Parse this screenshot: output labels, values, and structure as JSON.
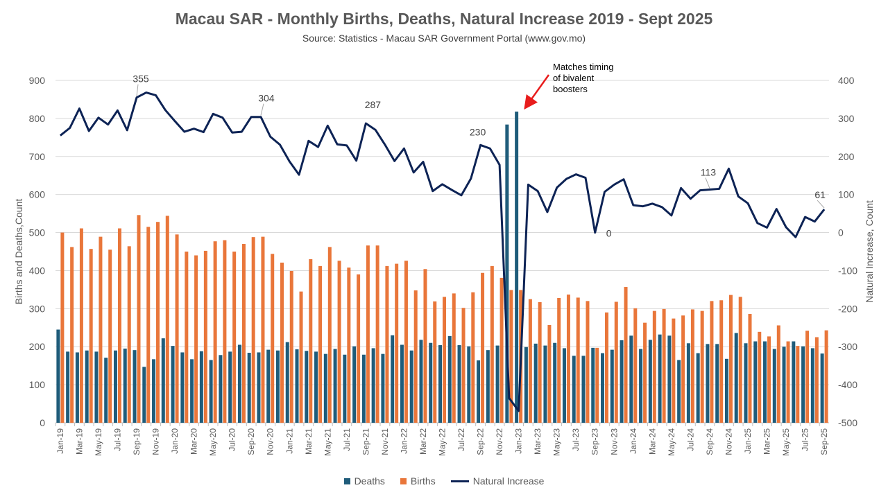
{
  "chart_data": {
    "type": "bar+line",
    "title": "Macau SAR - Monthly Births, Deaths, Natural Increase 2019 - Sept 2025",
    "subtitle": "Source: Statistics - Macau SAR Government Portal (www.gov.mo)",
    "ylabel_left": "Births and Deaths,Count",
    "ylabel_right": "Natural Increase, Count",
    "ylim_left": [
      0,
      900
    ],
    "ylim_right": [
      -500,
      400
    ],
    "yticks_left": [
      "0",
      "100",
      "200",
      "300",
      "400",
      "500",
      "600",
      "700",
      "800",
      "900"
    ],
    "yticks_right": [
      "-500",
      "-400",
      "-300",
      "-200",
      "-100",
      "0",
      "100",
      "200",
      "300",
      "400"
    ],
    "grid": true,
    "legend_position": "bottom",
    "months": [
      "Jan-19",
      "Feb-19",
      "Mar-19",
      "Apr-19",
      "May-19",
      "Jun-19",
      "Jul-19",
      "Aug-19",
      "Sep-19",
      "Oct-19",
      "Nov-19",
      "Dec-19",
      "Jan-20",
      "Feb-20",
      "Mar-20",
      "Apr-20",
      "May-20",
      "Jun-20",
      "Jul-20",
      "Aug-20",
      "Sep-20",
      "Oct-20",
      "Nov-20",
      "Dec-20",
      "Jan-21",
      "Feb-21",
      "Mar-21",
      "Apr-21",
      "May-21",
      "Jun-21",
      "Jul-21",
      "Aug-21",
      "Sep-21",
      "Oct-21",
      "Nov-21",
      "Dec-21",
      "Jan-22",
      "Feb-22",
      "Mar-22",
      "Apr-22",
      "May-22",
      "Jun-22",
      "Jul-22",
      "Aug-22",
      "Sep-22",
      "Oct-22",
      "Nov-22",
      "Dec-22",
      "Jan-23",
      "Feb-23",
      "Mar-23",
      "Apr-23",
      "May-23",
      "Jun-23",
      "Jul-23",
      "Aug-23",
      "Sep-23",
      "Oct-23",
      "Nov-23",
      "Dec-23",
      "Jan-24",
      "Feb-24",
      "Mar-24",
      "Apr-24",
      "May-24",
      "Jun-24",
      "Jul-24",
      "Aug-24",
      "Sep-24",
      "Oct-24",
      "Nov-24",
      "Dec-24",
      "Jan-25",
      "Feb-25",
      "Mar-25",
      "Apr-25",
      "May-25",
      "Jun-25",
      "Jul-25",
      "Aug-25",
      "Sep-25"
    ],
    "series": [
      {
        "name": "Deaths",
        "axis": "left",
        "color": "#1f5c7a",
        "values": [
          245,
          187,
          185,
          190,
          187,
          171,
          190,
          195,
          191,
          147,
          167,
          222,
          202,
          185,
          167,
          188,
          165,
          178,
          187,
          205,
          184,
          185,
          192,
          190,
          212,
          193,
          189,
          187,
          181,
          194,
          179,
          201,
          179,
          196,
          181,
          230,
          205,
          190,
          218,
          210,
          204,
          228,
          204,
          201,
          164,
          191,
          203,
          784,
          818,
          199,
          208,
          203,
          210,
          196,
          176,
          176,
          197,
          183,
          192,
          217,
          229,
          194,
          218,
          232,
          229,
          165,
          209,
          183,
          207,
          207,
          168,
          236,
          209,
          214,
          214,
          194,
          200,
          214,
          201,
          196,
          182
        ]
      },
      {
        "name": "Births",
        "axis": "left",
        "color": "#e9763a",
        "values": [
          500,
          462,
          511,
          457,
          489,
          455,
          511,
          464,
          546,
          515,
          528,
          544,
          495,
          450,
          440,
          452,
          477,
          480,
          450,
          470,
          488,
          489,
          444,
          421,
          399,
          345,
          430,
          412,
          462,
          426,
          408,
          390,
          466,
          466,
          412,
          418,
          426,
          348,
          404,
          319,
          331,
          340,
          302,
          343,
          394,
          412,
          381,
          349,
          349,
          325,
          317,
          257,
          328,
          337,
          329,
          320,
          197,
          290,
          318,
          357,
          301,
          263,
          294,
          299,
          274,
          282,
          298,
          294,
          320,
          322,
          336,
          331,
          286,
          239,
          227,
          256,
          214,
          202,
          242,
          225,
          243
        ]
      },
      {
        "name": "Natural Increase",
        "axis": "right",
        "color": "#0d2355",
        "values": [
          255,
          275,
          326,
          267,
          302,
          284,
          321,
          269,
          355,
          368,
          361,
          322,
          293,
          265,
          273,
          264,
          312,
          302,
          263,
          265,
          304,
          304,
          252,
          231,
          187,
          152,
          241,
          225,
          281,
          232,
          229,
          189,
          287,
          270,
          231,
          188,
          221,
          158,
          186,
          109,
          127,
          112,
          98,
          142,
          230,
          221,
          178,
          -435,
          -469,
          126,
          109,
          54,
          118,
          141,
          153,
          144,
          0,
          107,
          126,
          140,
          72,
          69,
          76,
          67,
          45,
          117,
          89,
          111,
          113,
          115,
          168,
          95,
          77,
          25,
          13,
          62,
          14,
          -12,
          41,
          29,
          61
        ]
      }
    ],
    "data_labels": [
      {
        "month": "Sep-19",
        "text": "355"
      },
      {
        "month": "Oct-20",
        "text": "304"
      },
      {
        "month": "Sep-21",
        "text": "287"
      },
      {
        "month": "Sep-22",
        "text": "230"
      },
      {
        "month": "Sep-23",
        "text": "0"
      },
      {
        "month": "Sep-24",
        "text": "113"
      },
      {
        "month": "Sep-25",
        "text": "61"
      }
    ],
    "annotation": {
      "lines": [
        "Matches timing",
        "of bivalent",
        "boosters"
      ],
      "arrow_color": "#e81c1c",
      "points_to": "Jan-23"
    }
  },
  "legend": {
    "deaths": "Deaths",
    "births": "Births",
    "natural_increase": "Natural Increase"
  }
}
